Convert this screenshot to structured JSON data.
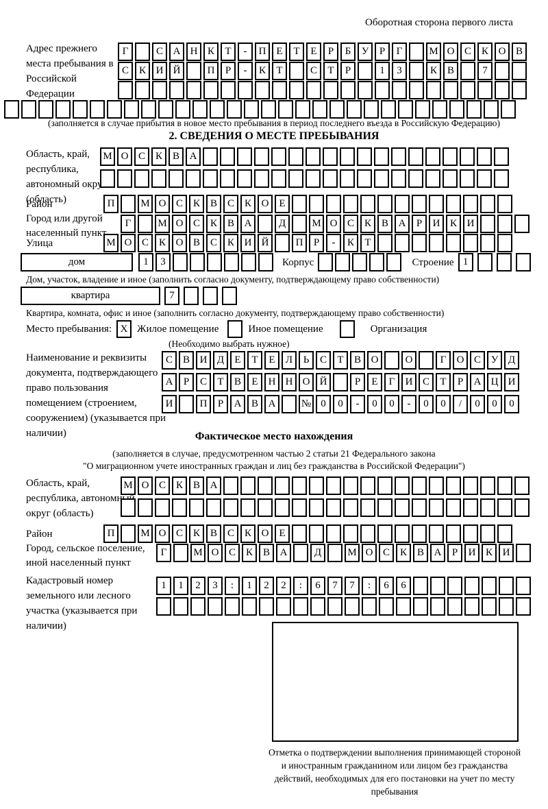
{
  "page": {
    "header_note": "Оборотная сторона первого листа"
  },
  "prev_address": {
    "label": "Адрес прежнего места пребывания в Российской Федерации",
    "row1": "Г САНКТ-ПЕТЕРБУРГ МОСКОВ",
    "row2": "СКИЙ ПР-КТ СТР 13 КВ 7",
    "row3": "",
    "row4": "",
    "note": "(заполняется в случае прибытия в новое место пребывания в период последнего въезда в Российскую Федерацию)"
  },
  "section2": {
    "title": "2. СВЕДЕНИЯ О МЕСТЕ ПРЕБЫВАНИЯ",
    "region_label": "Область, край, республика, автономный округ (область)",
    "region_row1": "МОСКВА",
    "region_row2": "",
    "district_label": "Район",
    "district_row": "П МОСКВСКОЕ",
    "city_label": "Город или другой населенный пункт",
    "city_row": "Г МОСКВА Д МОСКВАРИКИ",
    "street_label": "Улица",
    "street_row": "МОСКОВСКИЙ ПР-КТ",
    "house_box_label": "дом",
    "house_cells": "13",
    "korpus_label": "Корпус",
    "korpus_cells": "",
    "stroenie_label": "Строение",
    "stroenie_cells": "1",
    "house_note": "Дом, участок, владение и иное (заполнить согласно документу, подтверждающему право собственности)",
    "apartment_box_label": "квартира",
    "apartment_cells": "7",
    "apartment_note": "Квартира, комната, офис и иное (заполнить согласно документу, подтверждающему право собственности)",
    "stay_label": "Место пребывания:",
    "stay_options": [
      {
        "label": "Жилое помещение",
        "value": "X"
      },
      {
        "label": "Иное помещение",
        "value": ""
      },
      {
        "label": "Организация",
        "value": ""
      }
    ],
    "stay_note": "(Необходимо выбрать нужное)",
    "doc_label": "Наименование и реквизиты документа, подтверждающего право пользования помещением (строением, сооружением) (указывается при наличии)",
    "doc_row1": "СВИДЕТЕЛЬСТВО О ГОСУД",
    "doc_row2": "АРСТВЕННОЙ РЕГИСТРАЦИ",
    "doc_row3": "И ПРАВА №00-00-00/000"
  },
  "actual_location": {
    "title": "Фактическое место нахождения",
    "note_line1": "(заполняется в случае, предусмотренном частью 2 статьи 21 Федерального закона",
    "note_line2": "\"О миграционном учете иностранных граждан и лиц без гражданства в Российской Федерации\")",
    "region_label": "Область, край, республика, автономный округ (область)",
    "region_row1": "МОСКВА",
    "region_row2": "",
    "district_label": "Район",
    "district_row": "П МОСКВСКОЕ",
    "city_label": "Город, сельское поселение, иной населенный пункт",
    "city_row": "Г МОСКВА Д МОСКВАРИКИ",
    "cadastral_label": "Кадастровый номер земельного или лесного участка (указывается при наличии)",
    "cadastral_row1": "1123:122:677:66",
    "cadastral_row2": "",
    "stamp_note": "Отметка о подтверждении выполнения принимающей стороной и иностранным гражданином или лицом без гражданства действий, необходимых для его постановки на учет по месту пребывания"
  }
}
